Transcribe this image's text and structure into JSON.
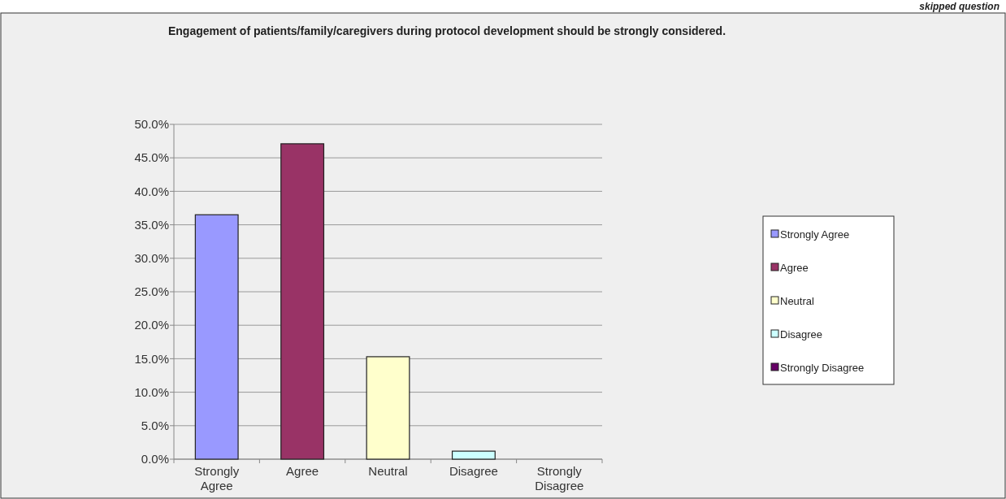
{
  "chart_data": {
    "type": "bar",
    "title": "Engagement of patients/family/caregivers during protocol development should be strongly considered.",
    "categories": [
      "Strongly Agree",
      "Agree",
      "Neutral",
      "Disagree",
      "Strongly Disagree"
    ],
    "series": [
      {
        "name": "Strongly Agree",
        "color": "#9999ff",
        "values": [
          36.5,
          null,
          null,
          null,
          null
        ]
      },
      {
        "name": "Agree",
        "color": "#993366",
        "values": [
          null,
          47.1,
          null,
          null,
          null
        ]
      },
      {
        "name": "Neutral",
        "color": "#ffffcc",
        "values": [
          null,
          null,
          15.3,
          null,
          null
        ]
      },
      {
        "name": "Disagree",
        "color": "#ccffff",
        "values": [
          null,
          null,
          null,
          1.2,
          null
        ]
      },
      {
        "name": "Strongly Disagree",
        "color": "#660066",
        "values": [
          null,
          null,
          null,
          null,
          0
        ]
      }
    ],
    "ylim": [
      0,
      50
    ],
    "yticks": [
      {
        "value": 0,
        "label": "0.0%"
      },
      {
        "value": 5,
        "label": "5.0%"
      },
      {
        "value": 10,
        "label": "10.0%"
      },
      {
        "value": 15,
        "label": "15.0%"
      },
      {
        "value": 20,
        "label": "20.0%"
      },
      {
        "value": 25,
        "label": "25.0%"
      },
      {
        "value": 30,
        "label": "30.0%"
      },
      {
        "value": 35,
        "label": "35.0%"
      },
      {
        "value": 40,
        "label": "40.0%"
      },
      {
        "value": 45,
        "label": "45.0%"
      },
      {
        "value": 50,
        "label": "50.0%"
      }
    ],
    "grid": "y",
    "legend": "right",
    "annotations": [
      "skipped question"
    ]
  }
}
